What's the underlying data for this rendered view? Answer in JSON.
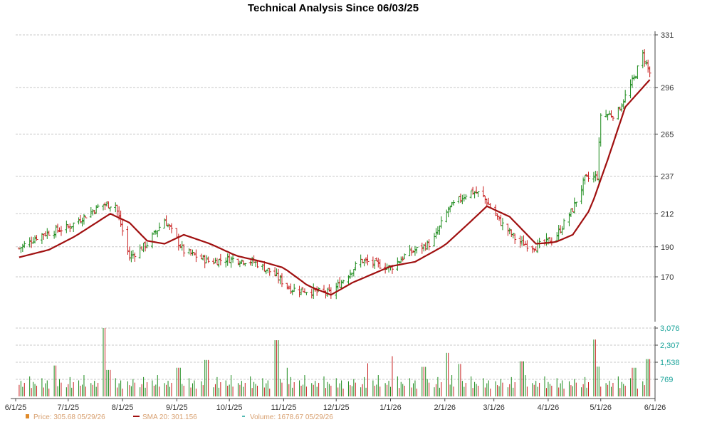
{
  "chart_data": {
    "type": "line",
    "title": "Technical Analysis Since 06/03/25",
    "x_tick_labels": [
      "6/1/25",
      "7/1/25",
      "8/1/25",
      "9/1/25",
      "10/1/25",
      "11/1/25",
      "12/1/25",
      "1/1/26",
      "2/1/26",
      "3/1/26",
      "4/1/26",
      "5/1/26",
      "6/1/26"
    ],
    "price_axis": {
      "ticks": [
        "331",
        "296",
        "265",
        "237",
        "212",
        "190",
        "170"
      ],
      "values": [
        331,
        296,
        265,
        237,
        212,
        190,
        170
      ],
      "range": [
        145,
        331
      ]
    },
    "volume_axis": {
      "ticks": [
        "3,076",
        "2,307",
        "1,538",
        "769"
      ],
      "values": [
        3076,
        2307,
        1538,
        769
      ],
      "range": [
        0,
        3076
      ]
    },
    "grid": true,
    "legend_position": "bottom-left",
    "legend": {
      "price": "Price: 305.68  05/29/26",
      "sma": "SMA 20: 301.156",
      "volume": "Volume: 1678.67  05/29/26"
    },
    "colors": {
      "up": "#1a8a1a",
      "down": "#c81e1e",
      "sma": "#a01010",
      "volume_axis": "#1aa39a",
      "legend": "#d8a070"
    },
    "price_anchors": {
      "dates": [
        "2025-06-03",
        "2025-06-15",
        "2025-07-01",
        "2025-07-20",
        "2025-07-28",
        "2025-08-05",
        "2025-08-15",
        "2025-08-25",
        "2025-09-05",
        "2025-09-20",
        "2025-10-01",
        "2025-10-15",
        "2025-10-25",
        "2025-11-05",
        "2025-11-20",
        "2025-11-28",
        "2025-12-05",
        "2025-12-15",
        "2026-01-01",
        "2026-01-10",
        "2026-01-25",
        "2026-02-03",
        "2026-02-15",
        "2026-02-22",
        "2026-03-05",
        "2026-03-15",
        "2026-03-25",
        "2026-04-05",
        "2026-04-15",
        "2026-04-22",
        "2026-04-29",
        "2026-05-01",
        "2026-05-10",
        "2026-05-20",
        "2026-05-25",
        "2026-05-29"
      ],
      "prices": [
        189,
        198,
        203,
        218,
        218,
        183,
        192,
        208,
        187,
        180,
        182,
        180,
        173,
        162,
        160,
        159,
        168,
        181,
        176,
        185,
        193,
        215,
        227,
        225,
        206,
        193,
        190,
        196,
        215,
        235,
        237,
        278,
        278,
        302,
        318,
        305.68
      ]
    },
    "sma_anchors": {
      "dates": [
        "2025-06-03",
        "2025-06-20",
        "2025-07-05",
        "2025-07-25",
        "2025-08-05",
        "2025-08-15",
        "2025-08-25",
        "2025-09-05",
        "2025-09-20",
        "2025-10-05",
        "2025-10-20",
        "2025-11-01",
        "2025-11-15",
        "2025-11-28",
        "2025-12-10",
        "2026-01-01",
        "2026-01-15",
        "2026-02-01",
        "2026-02-15",
        "2026-02-25",
        "2026-03-10",
        "2026-03-25",
        "2026-04-05",
        "2026-04-15",
        "2026-04-25",
        "2026-05-05",
        "2026-05-15",
        "2026-05-29"
      ],
      "values": [
        183,
        188,
        197,
        212,
        206,
        194,
        192,
        198,
        192,
        184,
        180,
        176,
        164,
        158,
        166,
        177,
        180,
        191,
        206,
        217,
        210,
        192,
        193,
        198,
        215,
        248,
        283,
        301.156
      ]
    },
    "volume_pattern": [
      520,
      700,
      430,
      610,
      900,
      380,
      650,
      560,
      480,
      820,
      400,
      590,
      720,
      350,
      680,
      510,
      460,
      780,
      620,
      410,
      550,
      870,
      390,
      640,
      720,
      480,
      530,
      960,
      440,
      600
    ],
    "volume_spikes": [
      {
        "date": "2025-07-21",
        "volume": 3076
      },
      {
        "date": "2025-07-24",
        "volume": 1190
      },
      {
        "date": "2025-06-23",
        "volume": 1390
      },
      {
        "date": "2025-09-02",
        "volume": 1290
      },
      {
        "date": "2025-09-18",
        "volume": 1640
      },
      {
        "date": "2025-10-28",
        "volume": 2530
      },
      {
        "date": "2025-11-02",
        "volume": 1290
      },
      {
        "date": "2025-12-20",
        "volume": 1490
      },
      {
        "date": "2026-01-03",
        "volume": 1810
      },
      {
        "date": "2026-01-20",
        "volume": 1330
      },
      {
        "date": "2026-02-02",
        "volume": 1960
      },
      {
        "date": "2026-02-09",
        "volume": 1460
      },
      {
        "date": "2026-03-17",
        "volume": 1580
      },
      {
        "date": "2026-04-27",
        "volume": 2560
      },
      {
        "date": "2026-04-29",
        "volume": 1340
      },
      {
        "date": "2026-05-20",
        "volume": 1290
      },
      {
        "date": "2026-05-28",
        "volume": 1678.67
      }
    ]
  }
}
